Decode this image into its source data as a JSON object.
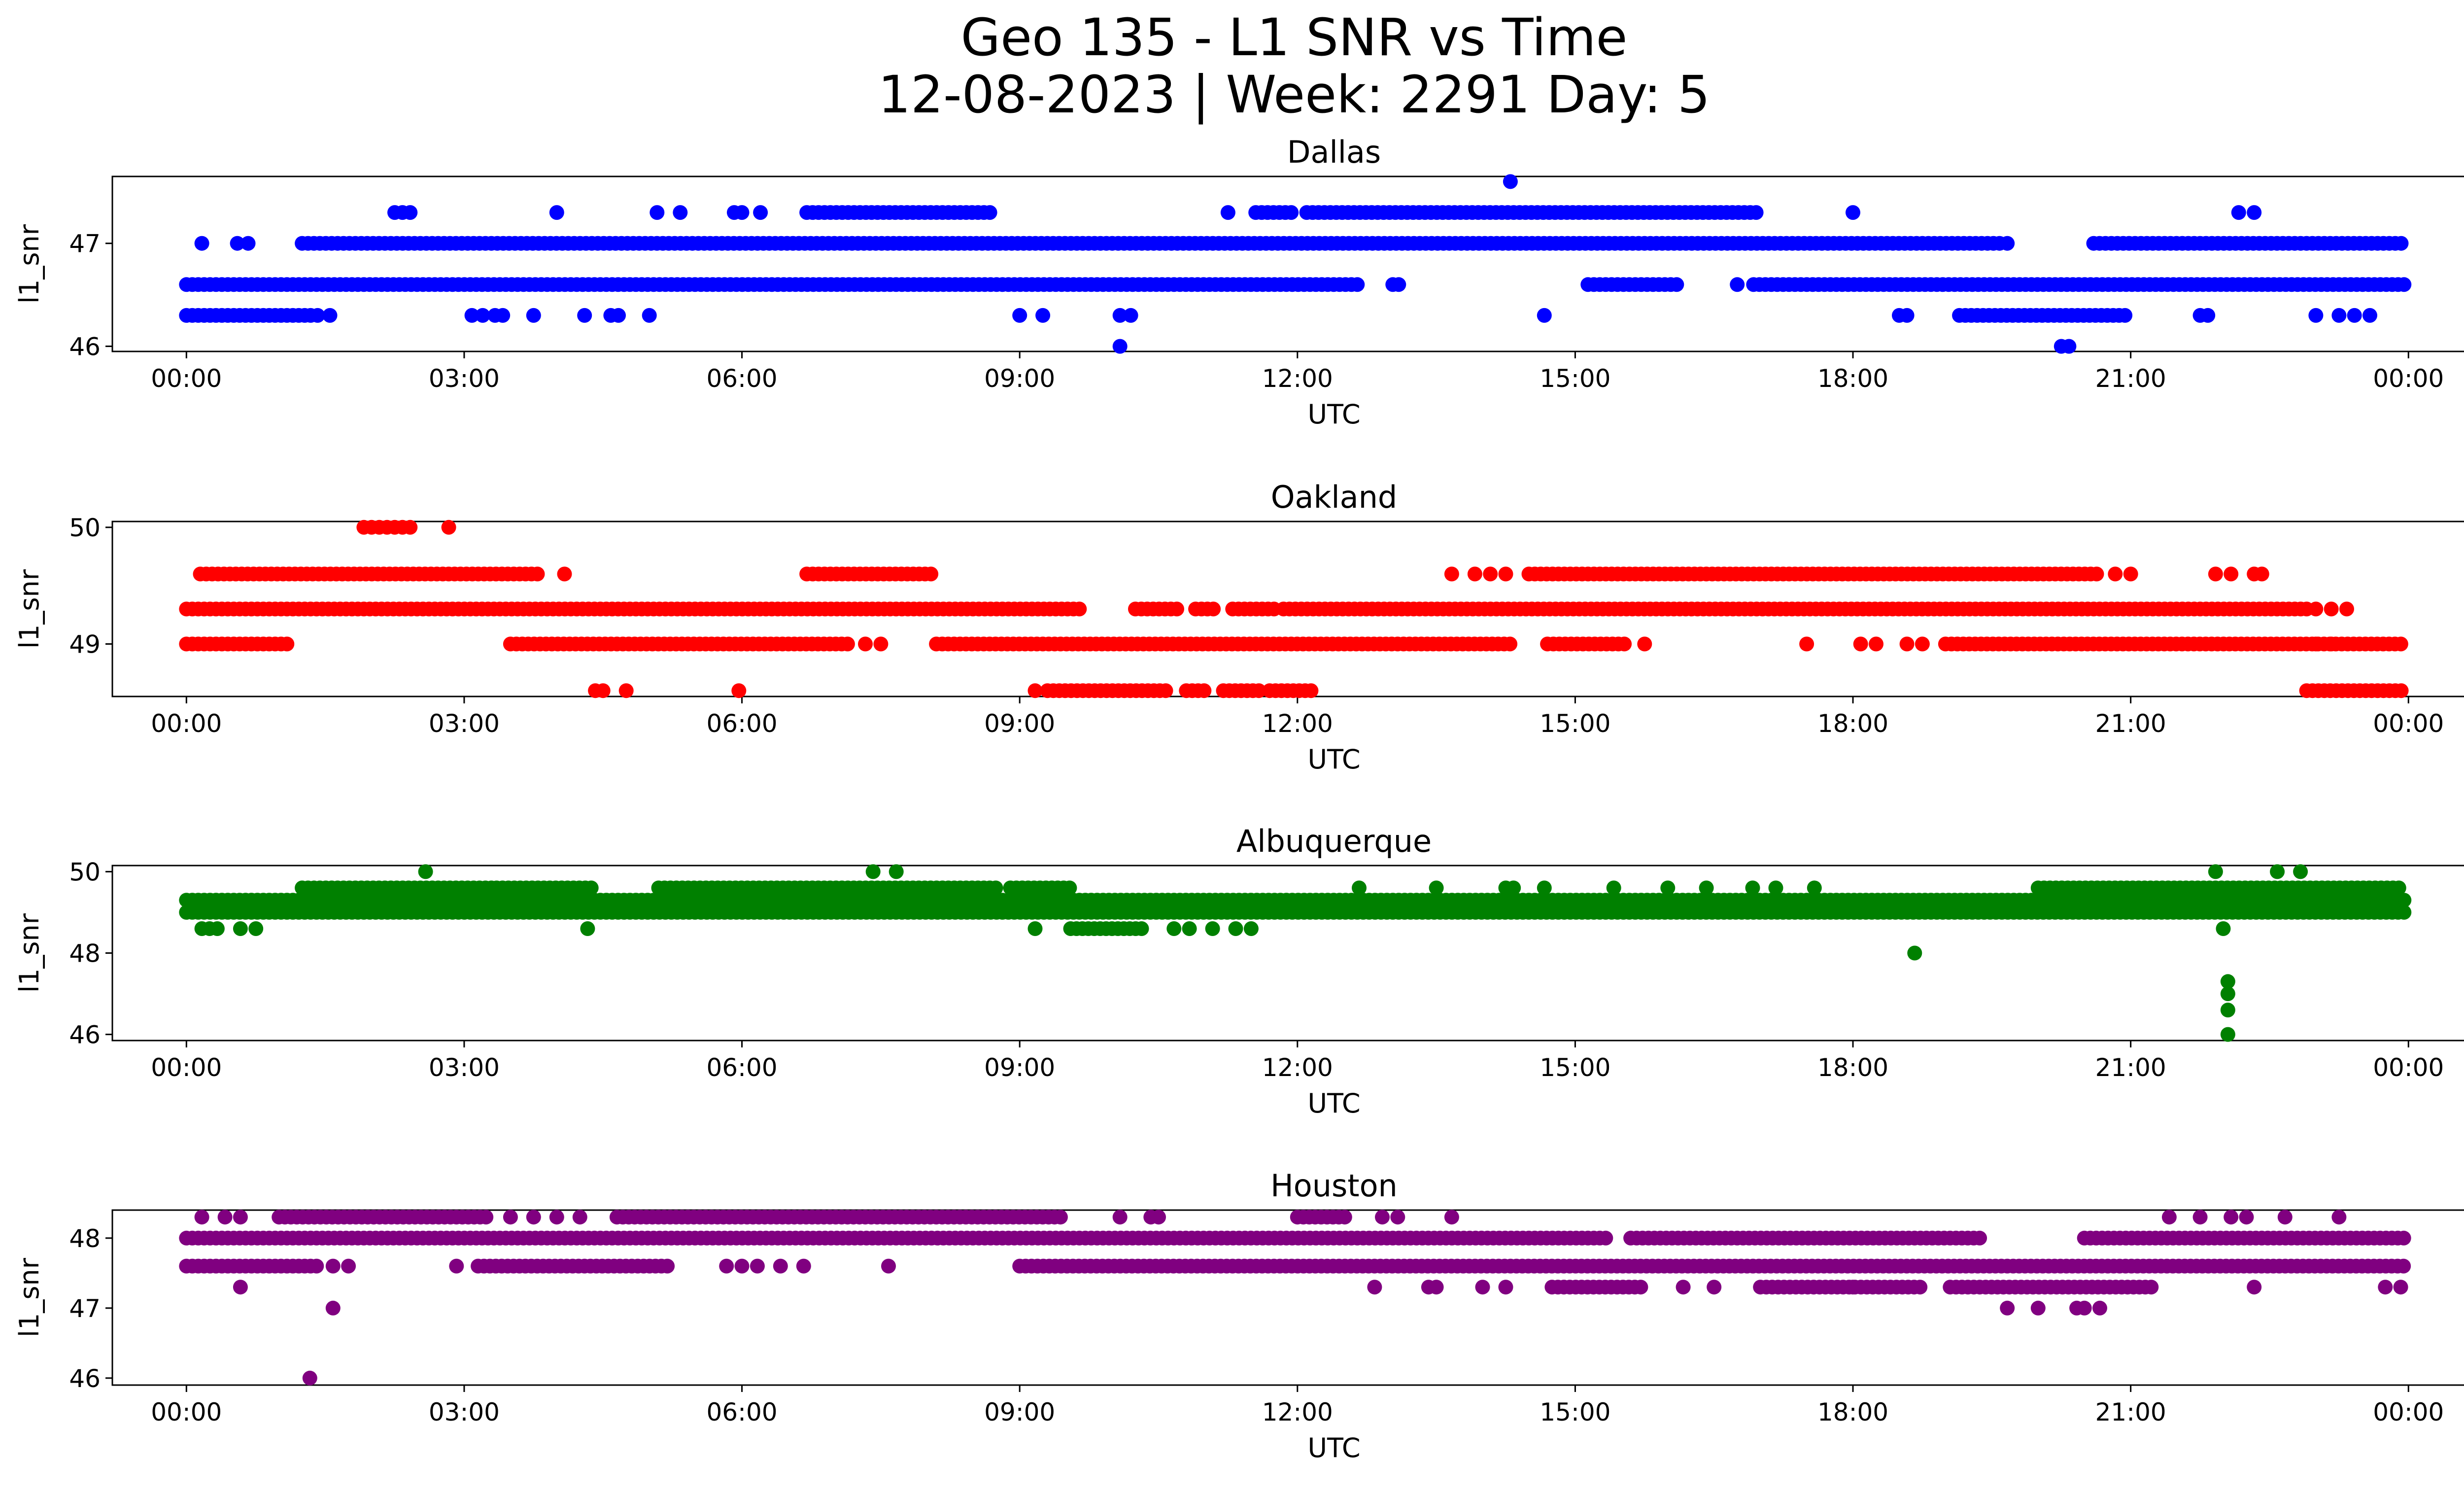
{
  "figure": {
    "title_line1": "Geo 135 - L1 SNR vs Time",
    "title_line2": "12-08-2023 | Week: 2291 Day: 5"
  },
  "chart_data": [
    {
      "type": "scatter",
      "title": "Dallas",
      "xlabel": "UTC",
      "ylabel": "l1_snr",
      "color": "#0000ff",
      "xlim": [
        "00:00",
        "24:00"
      ],
      "ylim": [
        45.95,
        47.65
      ],
      "x_ticks": [
        "00:00",
        "03:00",
        "06:00",
        "09:00",
        "12:00",
        "15:00",
        "18:00",
        "21:00",
        "00:00"
      ],
      "y_ticks": [
        46,
        47
      ],
      "bands": [
        {
          "y": 46.6,
          "ranges": [
            [
              0.0,
              23.98
            ]
          ],
          "gaps": [
            [
              12.7,
              13.0
            ],
            [
              13.1,
              15.1
            ],
            [
              16.1,
              16.9
            ]
          ]
        },
        {
          "y": 47.0,
          "ranges": [
            [
              1.25,
              19.55
            ],
            [
              20.6,
              23.98
            ]
          ],
          "gaps": []
        },
        {
          "y": 46.3,
          "ranges": [
            [
              0.0,
              1.35
            ],
            [
              19.15,
              21.0
            ]
          ],
          "gaps": []
        },
        {
          "y": 47.3,
          "ranges": [
            [
              6.7,
              7.35
            ],
            [
              7.4,
              8.7
            ],
            [
              11.55,
              11.95
            ],
            [
              12.1,
              17.0
            ]
          ],
          "gaps": []
        }
      ],
      "points": [
        {
          "x": "00:10",
          "y": 47.0
        },
        {
          "x": "00:33",
          "y": 47.0
        },
        {
          "x": "00:40",
          "y": 47.0
        },
        {
          "x": "01:25",
          "y": 46.3
        },
        {
          "x": "01:33",
          "y": 46.3
        },
        {
          "x": "02:15",
          "y": 47.3
        },
        {
          "x": "02:20",
          "y": 47.3
        },
        {
          "x": "02:25",
          "y": 47.3
        },
        {
          "x": "03:05",
          "y": 46.3
        },
        {
          "x": "03:12",
          "y": 46.3
        },
        {
          "x": "03:20",
          "y": 46.3
        },
        {
          "x": "03:25",
          "y": 46.3
        },
        {
          "x": "03:45",
          "y": 46.3
        },
        {
          "x": "04:00",
          "y": 47.3
        },
        {
          "x": "04:18",
          "y": 46.3
        },
        {
          "x": "04:35",
          "y": 46.3
        },
        {
          "x": "04:40",
          "y": 46.3
        },
        {
          "x": "05:00",
          "y": 46.3
        },
        {
          "x": "05:05",
          "y": 47.3
        },
        {
          "x": "05:20",
          "y": 47.3
        },
        {
          "x": "05:55",
          "y": 47.3
        },
        {
          "x": "06:00",
          "y": 47.3
        },
        {
          "x": "06:12",
          "y": 47.3
        },
        {
          "x": "09:00",
          "y": 46.3
        },
        {
          "x": "09:15",
          "y": 46.3
        },
        {
          "x": "10:05",
          "y": 46.0
        },
        {
          "x": "10:05",
          "y": 46.3
        },
        {
          "x": "10:12",
          "y": 46.3
        },
        {
          "x": "11:15",
          "y": 47.3
        },
        {
          "x": "14:18",
          "y": 47.6
        },
        {
          "x": "14:40",
          "y": 46.3
        },
        {
          "x": "16:45",
          "y": 46.6
        },
        {
          "x": "18:00",
          "y": 47.3
        },
        {
          "x": "18:30",
          "y": 46.3
        },
        {
          "x": "18:35",
          "y": 46.3
        },
        {
          "x": "19:35",
          "y": 47.0
        },
        {
          "x": "19:40",
          "y": 47.0
        },
        {
          "x": "20:15",
          "y": 46.0
        },
        {
          "x": "20:20",
          "y": 46.0
        },
        {
          "x": "21:45",
          "y": 46.3
        },
        {
          "x": "21:50",
          "y": 46.3
        },
        {
          "x": "22:10",
          "y": 47.3
        },
        {
          "x": "22:20",
          "y": 47.3
        },
        {
          "x": "23:00",
          "y": 46.3
        },
        {
          "x": "23:15",
          "y": 46.3
        },
        {
          "x": "23:25",
          "y": 46.3
        },
        {
          "x": "23:35",
          "y": 46.3
        }
      ]
    },
    {
      "type": "scatter",
      "title": "Oakland",
      "xlabel": "UTC",
      "ylabel": "l1_snr",
      "color": "#ff0000",
      "xlim": [
        "00:00",
        "24:00"
      ],
      "ylim": [
        48.55,
        50.05
      ],
      "x_ticks": [
        "00:00",
        "03:00",
        "06:00",
        "09:00",
        "12:00",
        "15:00",
        "18:00",
        "21:00",
        "00:00"
      ],
      "y_ticks": [
        49,
        50
      ],
      "bands": [
        {
          "y": 49.3,
          "ranges": [
            [
              0.0,
              9.7
            ],
            [
              10.25,
              10.75
            ],
            [
              10.9,
              11.15
            ],
            [
              11.3,
              11.75
            ],
            [
              11.85,
              22.9
            ]
          ],
          "gaps": []
        },
        {
          "y": 49.6,
          "ranges": [
            [
              0.15,
              3.85
            ],
            [
              6.7,
              8.05
            ],
            [
              14.5,
              20.65
            ]
          ],
          "gaps": []
        },
        {
          "y": 49.0,
          "ranges": [
            [
              0.0,
              1.1
            ],
            [
              3.5,
              7.2
            ],
            [
              8.1,
              14.3
            ],
            [
              14.7,
              15.55
            ],
            [
              19.0,
              23.98
            ]
          ],
          "gaps": []
        },
        {
          "y": 48.6,
          "ranges": [
            [
              9.3,
              10.6
            ],
            [
              10.8,
              11.0
            ],
            [
              11.2,
              11.6
            ],
            [
              11.7,
              12.2
            ],
            [
              22.9,
              23.98
            ]
          ],
          "gaps": []
        }
      ],
      "points": [
        {
          "x": "01:55",
          "y": 50.0
        },
        {
          "x": "02:00",
          "y": 50.0
        },
        {
          "x": "02:05",
          "y": 50.0
        },
        {
          "x": "02:10",
          "y": 50.0
        },
        {
          "x": "02:15",
          "y": 50.0
        },
        {
          "x": "02:20",
          "y": 50.0
        },
        {
          "x": "02:25",
          "y": 50.0
        },
        {
          "x": "02:50",
          "y": 50.0
        },
        {
          "x": "04:05",
          "y": 49.6
        },
        {
          "x": "04:25",
          "y": 48.6
        },
        {
          "x": "04:30",
          "y": 48.6
        },
        {
          "x": "04:45",
          "y": 48.6
        },
        {
          "x": "05:58",
          "y": 48.6
        },
        {
          "x": "09:10",
          "y": 48.6
        },
        {
          "x": "07:20",
          "y": 49.0
        },
        {
          "x": "07:30",
          "y": 49.0
        },
        {
          "x": "13:40",
          "y": 49.6
        },
        {
          "x": "13:55",
          "y": 49.6
        },
        {
          "x": "14:05",
          "y": 49.6
        },
        {
          "x": "14:15",
          "y": 49.6
        },
        {
          "x": "15:45",
          "y": 49.0
        },
        {
          "x": "17:30",
          "y": 49.0
        },
        {
          "x": "18:05",
          "y": 49.0
        },
        {
          "x": "18:15",
          "y": 49.0
        },
        {
          "x": "18:35",
          "y": 49.0
        },
        {
          "x": "18:45",
          "y": 49.0
        },
        {
          "x": "20:50",
          "y": 49.6
        },
        {
          "x": "21:00",
          "y": 49.6
        },
        {
          "x": "21:55",
          "y": 49.6
        },
        {
          "x": "22:05",
          "y": 49.6
        },
        {
          "x": "22:20",
          "y": 49.6
        },
        {
          "x": "22:25",
          "y": 49.6
        },
        {
          "x": "23:00",
          "y": 49.3
        },
        {
          "x": "23:10",
          "y": 49.3
        },
        {
          "x": "23:20",
          "y": 49.3
        },
        {
          "x": "23:00",
          "y": 49.0
        },
        {
          "x": "23:10",
          "y": 49.0
        }
      ]
    },
    {
      "type": "scatter",
      "title": "Albuquerque",
      "xlabel": "UTC",
      "ylabel": "l1_snr",
      "color": "#008000",
      "xlim": [
        "00:00",
        "24:00"
      ],
      "ylim": [
        45.85,
        50.15
      ],
      "x_ticks": [
        "00:00",
        "03:00",
        "06:00",
        "09:00",
        "12:00",
        "15:00",
        "18:00",
        "21:00",
        "00:00"
      ],
      "y_ticks": [
        46,
        48,
        50
      ],
      "bands": [
        {
          "y": 49.0,
          "ranges": [
            [
              0.0,
              23.98
            ]
          ],
          "gaps": []
        },
        {
          "y": 49.3,
          "ranges": [
            [
              0.0,
              23.98
            ]
          ],
          "gaps": []
        },
        {
          "y": 49.6,
          "ranges": [
            [
              1.25,
              3.3
            ],
            [
              3.35,
              4.4
            ],
            [
              5.1,
              8.8
            ],
            [
              8.9,
              9.6
            ],
            [
              20.0,
              23.9
            ]
          ],
          "gaps": []
        },
        {
          "y": 48.6,
          "ranges": [
            [
              9.55,
              10.35
            ]
          ],
          "gaps": []
        }
      ],
      "points": [
        {
          "x": "00:10",
          "y": 48.6
        },
        {
          "x": "00:15",
          "y": 48.6
        },
        {
          "x": "00:20",
          "y": 48.6
        },
        {
          "x": "00:35",
          "y": 48.6
        },
        {
          "x": "00:45",
          "y": 48.6
        },
        {
          "x": "02:35",
          "y": 50.0
        },
        {
          "x": "04:20",
          "y": 48.6
        },
        {
          "x": "07:25",
          "y": 50.0
        },
        {
          "x": "07:40",
          "y": 50.0
        },
        {
          "x": "09:10",
          "y": 48.6
        },
        {
          "x": "10:40",
          "y": 48.6
        },
        {
          "x": "10:50",
          "y": 48.6
        },
        {
          "x": "11:05",
          "y": 48.6
        },
        {
          "x": "11:20",
          "y": 48.6
        },
        {
          "x": "11:30",
          "y": 48.6
        },
        {
          "x": "12:40",
          "y": 49.6
        },
        {
          "x": "13:30",
          "y": 49.6
        },
        {
          "x": "14:15",
          "y": 49.6
        },
        {
          "x": "14:20",
          "y": 49.6
        },
        {
          "x": "14:40",
          "y": 49.6
        },
        {
          "x": "15:25",
          "y": 49.6
        },
        {
          "x": "16:00",
          "y": 49.6
        },
        {
          "x": "16:25",
          "y": 49.6
        },
        {
          "x": "16:55",
          "y": 49.6
        },
        {
          "x": "17:10",
          "y": 49.6
        },
        {
          "x": "17:35",
          "y": 49.6
        },
        {
          "x": "18:40",
          "y": 48.0
        },
        {
          "x": "21:55",
          "y": 50.0
        },
        {
          "x": "22:00",
          "y": 48.6
        },
        {
          "x": "22:03",
          "y": 47.3
        },
        {
          "x": "22:03",
          "y": 47.0
        },
        {
          "x": "22:03",
          "y": 46.6
        },
        {
          "x": "22:03",
          "y": 46.0
        },
        {
          "x": "22:35",
          "y": 50.0
        },
        {
          "x": "22:50",
          "y": 50.0
        }
      ]
    },
    {
      "type": "scatter",
      "title": "Houston",
      "xlabel": "UTC",
      "ylabel": "l1_snr",
      "color": "#800080",
      "xlim": [
        "00:00",
        "24:00"
      ],
      "ylim": [
        45.9,
        48.4
      ],
      "x_ticks": [
        "00:00",
        "03:00",
        "06:00",
        "09:00",
        "12:00",
        "15:00",
        "18:00",
        "21:00",
        "00:00"
      ],
      "y_ticks": [
        46,
        47,
        48
      ],
      "bands": [
        {
          "y": 48.0,
          "ranges": [
            [
              0.0,
              15.35
            ],
            [
              15.6,
              19.4
            ],
            [
              20.5,
              23.98
            ]
          ],
          "gaps": []
        },
        {
          "y": 47.6,
          "ranges": [
            [
              0.0,
              1.45
            ],
            [
              3.15,
              5.2
            ],
            [
              9.0,
              23.98
            ]
          ],
          "gaps": []
        },
        {
          "y": 48.3,
          "ranges": [
            [
              1.0,
              3.25
            ],
            [
              4.65,
              9.5
            ],
            [
              12.0,
              12.55
            ]
          ],
          "gaps": []
        },
        {
          "y": 47.3,
          "ranges": [
            [
              14.75,
              15.75
            ],
            [
              17.0,
              18.75
            ],
            [
              19.05,
              21.25
            ]
          ],
          "gaps": []
        }
      ],
      "points": [
        {
          "x": "00:10",
          "y": 48.3
        },
        {
          "x": "00:25",
          "y": 48.3
        },
        {
          "x": "00:35",
          "y": 48.3
        },
        {
          "x": "00:35",
          "y": 47.3
        },
        {
          "x": "01:20",
          "y": 46.0
        },
        {
          "x": "01:35",
          "y": 47.0
        },
        {
          "x": "01:35",
          "y": 47.6
        },
        {
          "x": "01:45",
          "y": 47.6
        },
        {
          "x": "02:55",
          "y": 47.6
        },
        {
          "x": "03:30",
          "y": 48.3
        },
        {
          "x": "03:45",
          "y": 48.3
        },
        {
          "x": "04:00",
          "y": 48.3
        },
        {
          "x": "04:15",
          "y": 48.3
        },
        {
          "x": "05:50",
          "y": 47.6
        },
        {
          "x": "06:00",
          "y": 47.6
        },
        {
          "x": "06:10",
          "y": 47.6
        },
        {
          "x": "06:25",
          "y": 47.6
        },
        {
          "x": "06:40",
          "y": 47.6
        },
        {
          "x": "07:35",
          "y": 47.6
        },
        {
          "x": "10:05",
          "y": 48.3
        },
        {
          "x": "10:25",
          "y": 48.3
        },
        {
          "x": "10:30",
          "y": 48.3
        },
        {
          "x": "12:50",
          "y": 47.3
        },
        {
          "x": "12:55",
          "y": 48.3
        },
        {
          "x": "13:05",
          "y": 48.3
        },
        {
          "x": "13:25",
          "y": 47.3
        },
        {
          "x": "13:30",
          "y": 47.3
        },
        {
          "x": "13:40",
          "y": 48.3
        },
        {
          "x": "14:00",
          "y": 47.3
        },
        {
          "x": "14:15",
          "y": 47.3
        },
        {
          "x": "16:10",
          "y": 47.3
        },
        {
          "x": "16:30",
          "y": 47.3
        },
        {
          "x": "18:00",
          "y": 47.3
        },
        {
          "x": "19:40",
          "y": 47.0
        },
        {
          "x": "20:00",
          "y": 47.0
        },
        {
          "x": "20:25",
          "y": 47.0
        },
        {
          "x": "20:30",
          "y": 47.0
        },
        {
          "x": "20:40",
          "y": 47.0
        },
        {
          "x": "21:25",
          "y": 48.3
        },
        {
          "x": "21:45",
          "y": 48.3
        },
        {
          "x": "22:05",
          "y": 48.3
        },
        {
          "x": "22:15",
          "y": 48.3
        },
        {
          "x": "22:20",
          "y": 47.3
        },
        {
          "x": "22:40",
          "y": 48.3
        },
        {
          "x": "23:15",
          "y": 48.3
        },
        {
          "x": "23:45",
          "y": 47.3
        },
        {
          "x": "23:55",
          "y": 47.3
        }
      ]
    }
  ]
}
